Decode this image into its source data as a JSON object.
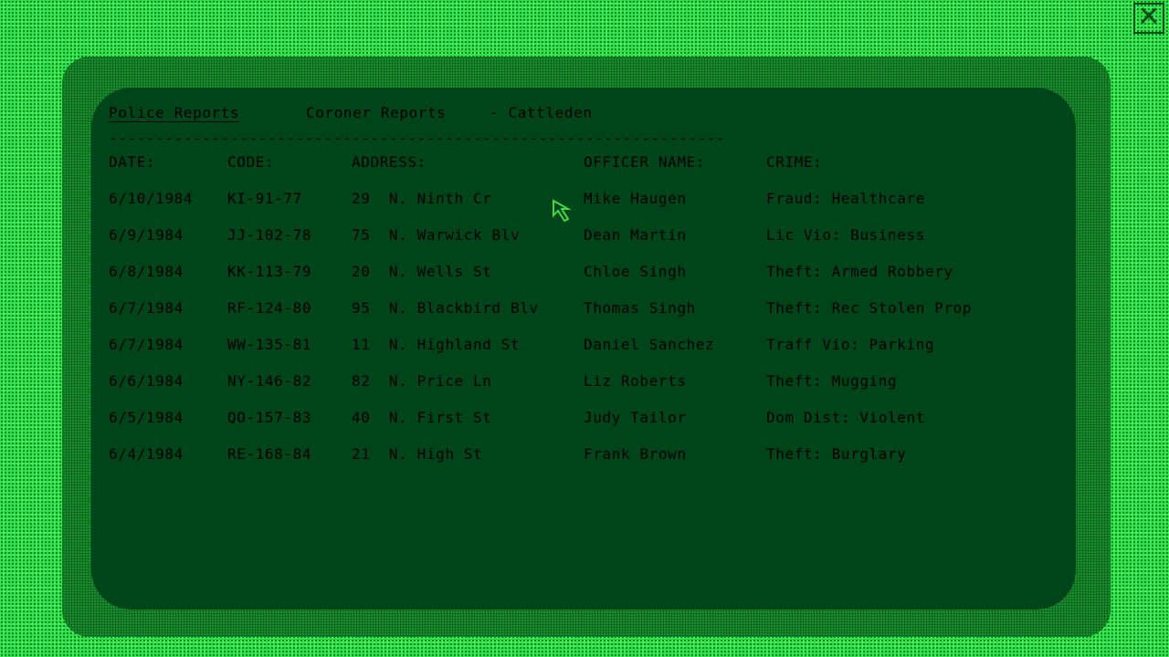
{
  "tabs": [
    {
      "label": "Police Reports",
      "active": true
    },
    {
      "label": "Coroner Reports",
      "active": false
    }
  ],
  "location": "- Cattleden",
  "divider": "------------------------------------------------------------------",
  "headers": [
    "DATE:",
    "CODE:",
    "ADDRESS:",
    "OFFICER NAME:",
    "CRIME:"
  ],
  "rows": [
    [
      "6/10/1984",
      "KI-91-77",
      "29  N. Ninth Cr",
      "Mike Haugen",
      "Fraud: Healthcare"
    ],
    [
      "6/9/1984",
      "JJ-102-78",
      "75  N. Warwick Blv",
      "Dean Martin",
      "Lic Vio: Business"
    ],
    [
      "6/8/1984",
      "KK-113-79",
      "20  N. Wells St",
      "Chloe Singh",
      "Theft: Armed Robbery"
    ],
    [
      "6/7/1984",
      "RF-124-80",
      "95  N. Blackbird Blv",
      "Thomas Singh",
      "Theft: Rec Stolen Prop"
    ],
    [
      "6/7/1984",
      "WW-135-81",
      "11  N. Highland St",
      "Daniel Sanchez",
      "Traff Vio: Parking"
    ],
    [
      "6/6/1984",
      "NY-146-82",
      "82  N. Price Ln",
      "Liz Roberts",
      "Theft: Mugging"
    ],
    [
      "6/5/1984",
      "QO-157-83",
      "40  N. First St",
      "Judy Tailor",
      "Dom Dist: Violent"
    ],
    [
      "6/4/1984",
      "RE-168-84",
      "21  N. High St",
      "Frank Brown",
      "Theft: Burglary"
    ]
  ],
  "close_icon": "close-x-icon",
  "colors": {
    "text": "#3fd84a",
    "screen": "#00441a",
    "background": "#2be34a"
  }
}
